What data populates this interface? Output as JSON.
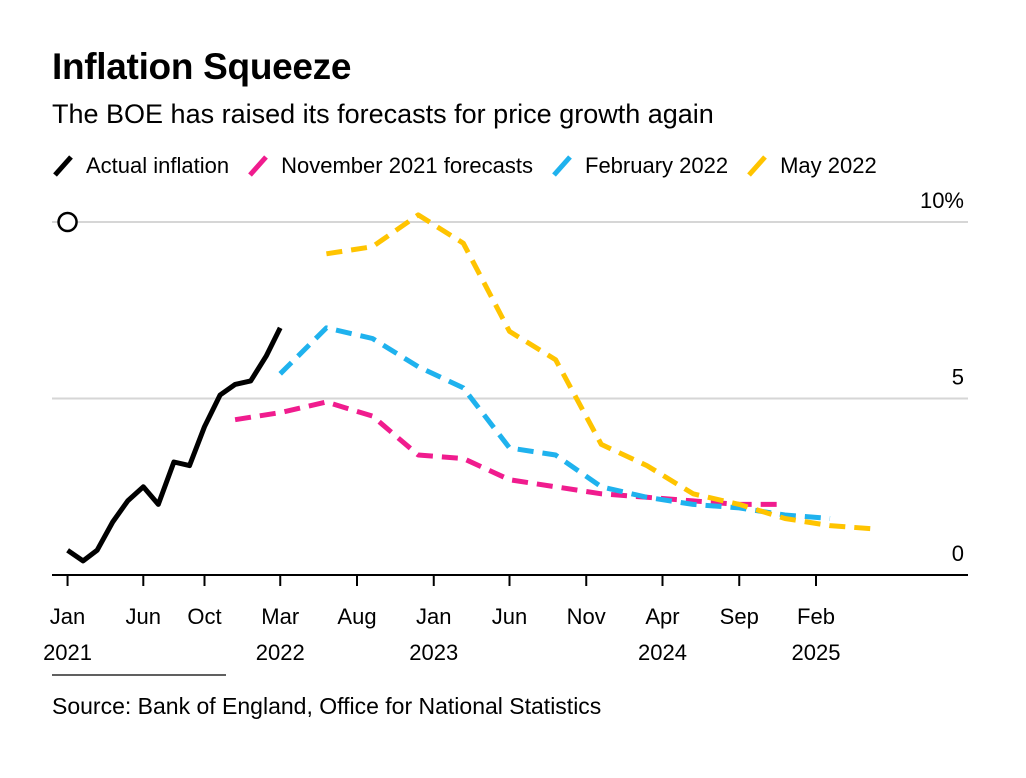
{
  "chart_data": {
    "type": "line",
    "title": "Inflation Squeeze",
    "subtitle": "The BOE has raised its forecasts for price growth again",
    "source": "Source: Bank of England, Office for National Statistics",
    "legend_placement": "top",
    "grid": true,
    "y_axis": {
      "side": "right",
      "range": [
        0,
        10
      ],
      "ticks": [
        {
          "value": 0,
          "label": "0"
        },
        {
          "value": 5,
          "label": "5"
        },
        {
          "value": 10,
          "label": "10%"
        }
      ]
    },
    "x_axis": {
      "range": [
        "2020-12-01",
        "2025-12-01"
      ],
      "ticks": [
        {
          "date": "2021-01-01",
          "month": "Jan",
          "year": "2021"
        },
        {
          "date": "2021-06-01",
          "month": "Jun",
          "year": ""
        },
        {
          "date": "2021-10-01",
          "month": "Oct",
          "year": ""
        },
        {
          "date": "2022-03-01",
          "month": "Mar",
          "year": "2022"
        },
        {
          "date": "2022-08-01",
          "month": "Aug",
          "year": ""
        },
        {
          "date": "2023-01-01",
          "month": "Jan",
          "year": "2023"
        },
        {
          "date": "2023-06-01",
          "month": "Jun",
          "year": ""
        },
        {
          "date": "2023-11-01",
          "month": "Nov",
          "year": ""
        },
        {
          "date": "2024-04-01",
          "month": "Apr",
          "year": "2024"
        },
        {
          "date": "2024-09-01",
          "month": "Sep",
          "year": ""
        },
        {
          "date": "2025-02-01",
          "month": "Feb",
          "year": "2025"
        }
      ]
    },
    "annotations": [
      {
        "type": "open-circle",
        "date": "2021-01-01",
        "value": 10
      }
    ],
    "series": [
      {
        "name": "Actual inflation",
        "color": "#000000",
        "style": "solid",
        "points": [
          [
            "2021-01-01",
            0.7
          ],
          [
            "2021-02-01",
            0.4
          ],
          [
            "2021-03-01",
            0.7
          ],
          [
            "2021-04-01",
            1.5
          ],
          [
            "2021-05-01",
            2.1
          ],
          [
            "2021-06-01",
            2.5
          ],
          [
            "2021-07-01",
            2.0
          ],
          [
            "2021-08-01",
            3.2
          ],
          [
            "2021-09-01",
            3.1
          ],
          [
            "2021-10-01",
            4.2
          ],
          [
            "2021-11-01",
            5.1
          ],
          [
            "2021-12-01",
            5.4
          ],
          [
            "2022-01-01",
            5.5
          ],
          [
            "2022-02-01",
            6.2
          ],
          [
            "2022-03-01",
            7.0
          ]
        ]
      },
      {
        "name": "November 2021 forecasts",
        "color": "#f01c8e",
        "style": "dashed",
        "points": [
          [
            "2021-12-01",
            4.4
          ],
          [
            "2022-03-01",
            4.6
          ],
          [
            "2022-06-01",
            4.9
          ],
          [
            "2022-09-01",
            4.5
          ],
          [
            "2022-12-01",
            3.4
          ],
          [
            "2023-03-01",
            3.3
          ],
          [
            "2023-06-01",
            2.7
          ],
          [
            "2023-09-01",
            2.5
          ],
          [
            "2023-12-01",
            2.3
          ],
          [
            "2024-03-01",
            2.2
          ],
          [
            "2024-06-01",
            2.1
          ],
          [
            "2024-09-01",
            2.0
          ],
          [
            "2024-12-01",
            2.0
          ]
        ]
      },
      {
        "name": "February 2022",
        "color": "#1fb2ee",
        "style": "dashed",
        "points": [
          [
            "2022-03-01",
            5.7
          ],
          [
            "2022-06-01",
            7.0
          ],
          [
            "2022-09-01",
            6.7
          ],
          [
            "2022-12-01",
            5.9
          ],
          [
            "2023-03-01",
            5.3
          ],
          [
            "2023-06-01",
            3.6
          ],
          [
            "2023-09-01",
            3.4
          ],
          [
            "2023-12-01",
            2.5
          ],
          [
            "2024-03-01",
            2.2
          ],
          [
            "2024-06-01",
            2.0
          ],
          [
            "2024-09-01",
            1.9
          ],
          [
            "2024-12-01",
            1.7
          ],
          [
            "2025-03-01",
            1.6
          ]
        ]
      },
      {
        "name": "May 2022",
        "color": "#ffc400",
        "style": "dashed",
        "points": [
          [
            "2022-06-01",
            9.1
          ],
          [
            "2022-09-01",
            9.3
          ],
          [
            "2022-12-01",
            10.2
          ],
          [
            "2023-03-01",
            9.4
          ],
          [
            "2023-06-01",
            6.9
          ],
          [
            "2023-09-01",
            6.1
          ],
          [
            "2023-12-01",
            3.7
          ],
          [
            "2024-03-01",
            3.1
          ],
          [
            "2024-06-01",
            2.3
          ],
          [
            "2024-09-01",
            2.0
          ],
          [
            "2024-12-01",
            1.6
          ],
          [
            "2025-03-01",
            1.4
          ],
          [
            "2025-06-01",
            1.3
          ]
        ]
      }
    ]
  }
}
